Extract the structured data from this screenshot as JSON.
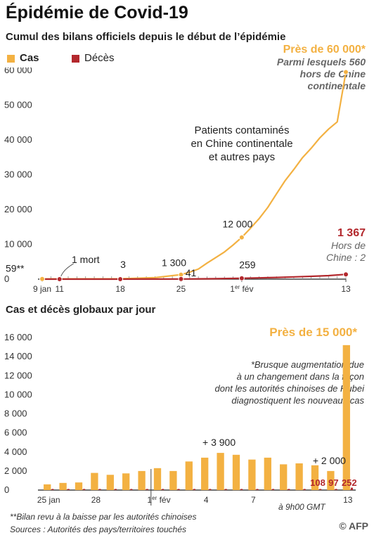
{
  "title": "Épidémie de Covid-19",
  "subtitle": "Cumul des bilans officiels depuis le début de l’épidémie",
  "legend": {
    "cases": "Cas",
    "deaths": "Décès"
  },
  "colors": {
    "cases": "#f3b142",
    "deaths": "#b3282d",
    "axis": "#444",
    "grid": "#ccc",
    "muted": "#888"
  },
  "chart1_annotations": {
    "peak_value": "Près de 60 000*",
    "peak_sub1": "Parmi lesquels 560",
    "peak_sub2": "hors de Chine",
    "peak_sub3": "continentale",
    "patients1": "Patients contaminés",
    "patients2": "en Chine continentale",
    "patients3": "et autres pays",
    "death_total": "1 367",
    "hors_chine1": "Hors de",
    "hors_chine2": "Chine : 2",
    "first_death": "1 mort"
  },
  "chart2_title": "Cas et décès globaux par jour",
  "chart2_annotations": {
    "peak": "Près de 15 000*",
    "note1": "*Brusque augmentation due",
    "note2": "à un changement dans la façon",
    "note3": "dont les autorités chinoises de Hubei",
    "note4": "diagnostiquent les nouveaux cas",
    "time": "à 9h00 GMT"
  },
  "footnote1": "**Bilan revu à la baisse par les autorités chinoises",
  "sources": "Sources : Autorités des pays/territoires touchés",
  "credit": "© AFP",
  "chart_data": [
    {
      "type": "line",
      "title": "Cumul des bilans officiels depuis le début de l’épidémie",
      "x_tick_labels": [
        "9 jan",
        "11",
        "18",
        "25",
        "1er fév",
        "13"
      ],
      "x_tick_days": [
        0,
        2,
        9,
        16,
        23,
        35
      ],
      "ylim": [
        0,
        60000
      ],
      "y_ticks": [
        0,
        10000,
        20000,
        30000,
        40000,
        50000,
        60000
      ],
      "y_tick_labels": [
        "0",
        "10 000",
        "20 000",
        "30 000",
        "40 000",
        "50 000",
        "60 000"
      ],
      "grid": false,
      "legend": "top-left",
      "series": [
        {
          "name": "Cas",
          "x_days": [
            0,
            9,
            13,
            16,
            17,
            18,
            19,
            20,
            21,
            22,
            23,
            24,
            25,
            26,
            27,
            28,
            29,
            30,
            31,
            32,
            33,
            34,
            35
          ],
          "values": [
            59,
            100,
            450,
            1300,
            2000,
            2900,
            4600,
            6200,
            7800,
            9800,
            12000,
            14600,
            17400,
            20600,
            24500,
            28300,
            31500,
            34900,
            37600,
            40600,
            43100,
            45200,
            59500
          ]
        },
        {
          "name": "Décès",
          "x_days": [
            0,
            2,
            9,
            13,
            16,
            18,
            20,
            23,
            25,
            27,
            29,
            31,
            33,
            35
          ],
          "values": [
            0,
            1,
            3,
            17,
            41,
            80,
            130,
            259,
            360,
            490,
            640,
            810,
            1020,
            1367
          ]
        }
      ],
      "point_labels": [
        {
          "x_day": 0,
          "series": "Cas",
          "label": "59**"
        },
        {
          "x_day": 9,
          "series": "Décès",
          "label": "3"
        },
        {
          "x_day": 16,
          "series": "Cas",
          "label": "1 300"
        },
        {
          "x_day": 16,
          "series": "Décès",
          "label": "41"
        },
        {
          "x_day": 23,
          "series": "Cas",
          "label": "12 000"
        },
        {
          "x_day": 23,
          "series": "Décès",
          "label": "259"
        }
      ]
    },
    {
      "type": "bar",
      "title": "Cas et décès globaux par jour",
      "categories": [
        "25 jan",
        "26",
        "27",
        "28",
        "29",
        "30",
        "31",
        "1er fév",
        "2",
        "3",
        "4",
        "5",
        "6",
        "7",
        "8",
        "9",
        "10",
        "11",
        "12",
        "13"
      ],
      "x_tick_labels": [
        "25 jan",
        "28",
        "1er fév",
        "4",
        "7",
        "13"
      ],
      "x_tick_index": [
        0,
        3,
        7,
        10,
        13,
        19
      ],
      "ylim": [
        0,
        16000
      ],
      "y_ticks": [
        0,
        2000,
        4000,
        6000,
        8000,
        10000,
        12000,
        14000,
        16000
      ],
      "y_tick_labels": [
        "0",
        "2 000",
        "4 000",
        "6 000",
        "8 000",
        "10 000",
        "12 000",
        "14 000",
        "16 000"
      ],
      "series": [
        {
          "name": "Cas",
          "values": [
            600,
            750,
            800,
            1800,
            1600,
            1750,
            2000,
            2300,
            2000,
            3000,
            3400,
            3900,
            3700,
            3200,
            3400,
            2700,
            2800,
            2600,
            2000,
            15200
          ]
        },
        {
          "name": "Décès",
          "values": [
            15,
            24,
            26,
            28,
            26,
            38,
            43,
            46,
            45,
            57,
            64,
            66,
            73,
            73,
            86,
            89,
            97,
            108,
            97,
            252
          ]
        }
      ],
      "data_labels": [
        {
          "index": 11,
          "series": "Cas",
          "label": "+ 3 900"
        },
        {
          "index": 18,
          "series": "Cas",
          "label": "+ 2 000"
        },
        {
          "index": 17,
          "series": "Décès",
          "label": "108"
        },
        {
          "index": 18,
          "series": "Décès",
          "label": "97"
        },
        {
          "index": 19,
          "series": "Décès",
          "label": "252"
        }
      ]
    }
  ]
}
